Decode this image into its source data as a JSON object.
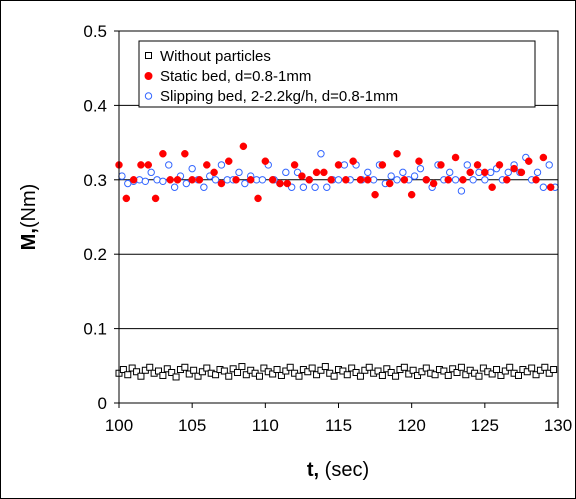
{
  "chart_data": {
    "type": "scatter",
    "xlabel_bold": "t,",
    "xlabel_rest": " (sec)",
    "ylabel_bold": "M,",
    "ylabel_rest": "(Nm)",
    "xlim": [
      100,
      130
    ],
    "ylim": [
      0,
      0.5
    ],
    "xticks": [
      "100",
      "105",
      "110",
      "115",
      "120",
      "125",
      "130"
    ],
    "yticks": [
      "0",
      "0.1",
      "0.2",
      "0.3",
      "0.4",
      "0.5"
    ],
    "legend_position": "top",
    "grid": "horizontal",
    "series": [
      {
        "name": "Without particles",
        "marker": "square-open",
        "color": "#000000",
        "x": [
          100.0,
          100.3,
          100.6,
          100.9,
          101.2,
          101.5,
          101.8,
          102.1,
          102.4,
          102.7,
          103.0,
          103.3,
          103.6,
          103.9,
          104.2,
          104.5,
          104.8,
          105.1,
          105.4,
          105.7,
          106.0,
          106.3,
          106.6,
          106.9,
          107.2,
          107.5,
          107.8,
          108.1,
          108.4,
          108.7,
          109.0,
          109.3,
          109.6,
          109.9,
          110.2,
          110.5,
          110.8,
          111.1,
          111.4,
          111.7,
          112.0,
          112.3,
          112.6,
          112.9,
          113.2,
          113.5,
          113.8,
          114.1,
          114.4,
          114.7,
          115.0,
          115.3,
          115.6,
          115.9,
          116.2,
          116.5,
          116.8,
          117.1,
          117.4,
          117.7,
          118.0,
          118.3,
          118.6,
          118.9,
          119.2,
          119.5,
          119.8,
          120.1,
          120.4,
          120.7,
          121.0,
          121.3,
          121.6,
          121.9,
          122.2,
          122.5,
          122.8,
          123.1,
          123.4,
          123.7,
          124.0,
          124.3,
          124.6,
          124.9,
          125.2,
          125.5,
          125.8,
          126.1,
          126.4,
          126.7,
          127.0,
          127.3,
          127.6,
          127.9,
          128.2,
          128.5,
          128.8,
          129.1,
          129.4,
          129.7
        ],
        "y": [
          0.04,
          0.045,
          0.038,
          0.047,
          0.042,
          0.036,
          0.044,
          0.048,
          0.04,
          0.043,
          0.037,
          0.046,
          0.041,
          0.035,
          0.045,
          0.048,
          0.039,
          0.044,
          0.036,
          0.042,
          0.047,
          0.04,
          0.038,
          0.045,
          0.043,
          0.036,
          0.046,
          0.041,
          0.049,
          0.038,
          0.044,
          0.04,
          0.036,
          0.047,
          0.042,
          0.039,
          0.045,
          0.037,
          0.043,
          0.048,
          0.04,
          0.036,
          0.045,
          0.042,
          0.047,
          0.038,
          0.044,
          0.049,
          0.04,
          0.036,
          0.045,
          0.043,
          0.038,
          0.047,
          0.041,
          0.036,
          0.044,
          0.048,
          0.04,
          0.043,
          0.037,
          0.046,
          0.041,
          0.036,
          0.045,
          0.048,
          0.039,
          0.044,
          0.037,
          0.042,
          0.047,
          0.04,
          0.038,
          0.045,
          0.043,
          0.037,
          0.046,
          0.041,
          0.048,
          0.038,
          0.044,
          0.04,
          0.036,
          0.047,
          0.042,
          0.039,
          0.045,
          0.037,
          0.043,
          0.048,
          0.04,
          0.037,
          0.045,
          0.042,
          0.047,
          0.038,
          0.044,
          0.048,
          0.04,
          0.045
        ]
      },
      {
        "name": "Static bed, d=0.8-1mm",
        "marker": "circle-filled",
        "color": "#ff0000",
        "x": [
          100.0,
          100.5,
          101.0,
          101.5,
          102.0,
          102.5,
          103.0,
          103.5,
          104.0,
          104.5,
          105.0,
          105.5,
          106.0,
          106.5,
          107.0,
          107.5,
          108.0,
          108.5,
          109.0,
          109.5,
          110.0,
          110.5,
          111.0,
          111.5,
          112.0,
          112.5,
          113.0,
          113.5,
          114.0,
          114.5,
          115.0,
          115.5,
          116.0,
          116.5,
          117.0,
          117.5,
          118.0,
          118.5,
          119.0,
          119.5,
          120.0,
          120.5,
          121.0,
          121.5,
          122.0,
          122.5,
          123.0,
          123.5,
          124.0,
          124.5,
          125.0,
          125.5,
          126.0,
          126.5,
          127.0,
          127.5,
          128.0,
          128.5,
          129.0,
          129.5
        ],
        "y": [
          0.32,
          0.275,
          0.3,
          0.32,
          0.32,
          0.275,
          0.335,
          0.3,
          0.3,
          0.335,
          0.3,
          0.3,
          0.32,
          0.31,
          0.295,
          0.325,
          0.3,
          0.345,
          0.3,
          0.275,
          0.325,
          0.3,
          0.295,
          0.295,
          0.32,
          0.305,
          0.3,
          0.31,
          0.31,
          0.3,
          0.32,
          0.3,
          0.325,
          0.3,
          0.3,
          0.28,
          0.32,
          0.295,
          0.335,
          0.3,
          0.28,
          0.325,
          0.3,
          0.295,
          0.32,
          0.3,
          0.33,
          0.3,
          0.31,
          0.32,
          0.31,
          0.29,
          0.32,
          0.3,
          0.315,
          0.31,
          0.325,
          0.3,
          0.33,
          0.29
        ]
      },
      {
        "name": "Slipping bed, 2-2.2kg/h, d=0.8-1mm",
        "marker": "circle-open",
        "color": "#3366ff",
        "x": [
          100.2,
          100.6,
          101.0,
          101.4,
          101.8,
          102.2,
          102.6,
          103.0,
          103.4,
          103.8,
          104.2,
          104.6,
          105.0,
          105.4,
          105.8,
          106.2,
          106.6,
          107.0,
          107.4,
          107.8,
          108.2,
          108.6,
          109.0,
          109.4,
          109.8,
          110.2,
          110.6,
          111.0,
          111.4,
          111.8,
          112.2,
          112.6,
          113.0,
          113.4,
          113.8,
          114.2,
          114.6,
          115.0,
          115.4,
          115.8,
          116.2,
          116.6,
          117.0,
          117.4,
          117.8,
          118.2,
          118.6,
          119.0,
          119.4,
          119.8,
          120.2,
          120.6,
          121.0,
          121.4,
          121.8,
          122.2,
          122.6,
          123.0,
          123.4,
          123.8,
          124.2,
          124.6,
          125.0,
          125.4,
          125.8,
          126.2,
          126.6,
          127.0,
          127.4,
          127.8,
          128.2,
          128.6,
          129.0,
          129.4,
          129.8
        ],
        "y": [
          0.305,
          0.295,
          0.298,
          0.3,
          0.298,
          0.31,
          0.3,
          0.298,
          0.32,
          0.29,
          0.305,
          0.295,
          0.315,
          0.3,
          0.29,
          0.305,
          0.3,
          0.32,
          0.3,
          0.3,
          0.31,
          0.295,
          0.305,
          0.3,
          0.3,
          0.32,
          0.3,
          0.295,
          0.31,
          0.29,
          0.31,
          0.29,
          0.3,
          0.29,
          0.335,
          0.29,
          0.3,
          0.3,
          0.32,
          0.3,
          0.32,
          0.3,
          0.31,
          0.3,
          0.32,
          0.295,
          0.305,
          0.3,
          0.31,
          0.3,
          0.305,
          0.315,
          0.3,
          0.29,
          0.32,
          0.3,
          0.31,
          0.3,
          0.285,
          0.32,
          0.3,
          0.31,
          0.3,
          0.31,
          0.315,
          0.3,
          0.31,
          0.32,
          0.31,
          0.33,
          0.3,
          0.31,
          0.29,
          0.32,
          0.29
        ]
      }
    ]
  }
}
